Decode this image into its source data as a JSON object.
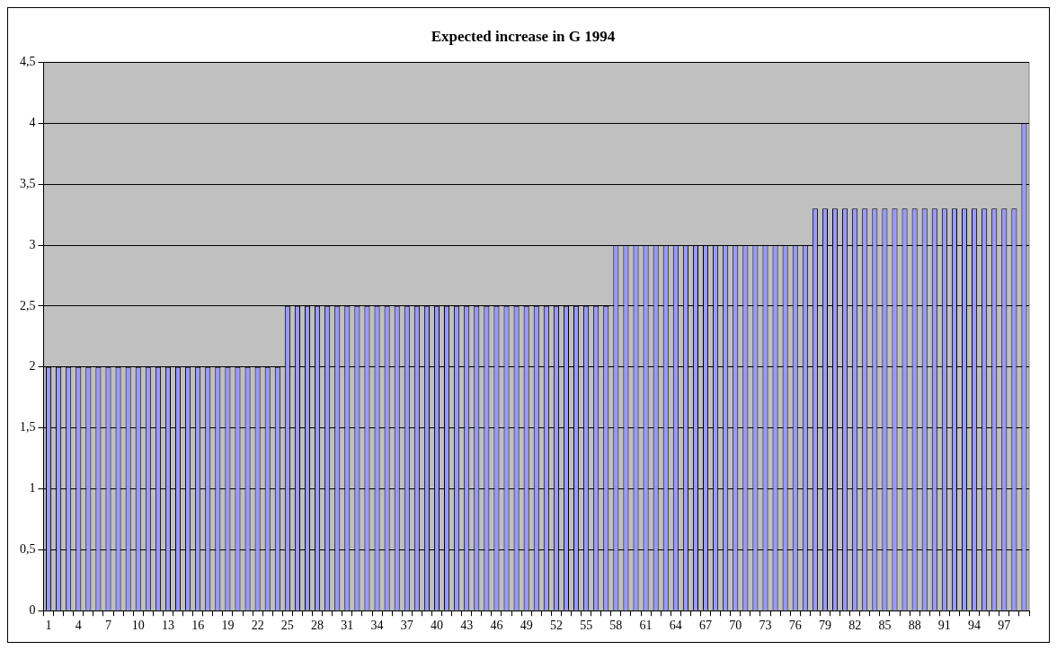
{
  "chart_data": {
    "type": "bar",
    "title": "Expected increase in G 1994",
    "categories": [
      "1",
      null,
      null,
      "4",
      null,
      null,
      "7",
      null,
      null,
      "10",
      null,
      null,
      "13",
      null,
      null,
      "16",
      null,
      null,
      "19",
      null,
      null,
      "22",
      null,
      null,
      "25",
      null,
      null,
      "28",
      null,
      null,
      "31",
      null,
      null,
      "34",
      null,
      null,
      "37",
      null,
      null,
      "40",
      null,
      null,
      "43",
      null,
      null,
      "46",
      null,
      null,
      "49",
      null,
      null,
      "52",
      null,
      null,
      "55",
      null,
      null,
      "58",
      null,
      null,
      "61",
      null,
      null,
      "64",
      null,
      null,
      "67",
      null,
      null,
      "70",
      null,
      null,
      "73",
      null,
      null,
      "76",
      null,
      null,
      "79",
      null,
      null,
      "82",
      null,
      null,
      "85",
      null,
      null,
      "88",
      null,
      null,
      "91",
      null,
      null,
      "94",
      null,
      null,
      "97",
      null,
      null
    ],
    "values": [
      2,
      2,
      2,
      2,
      2,
      2,
      2,
      2,
      2,
      2,
      2,
      2,
      2,
      2,
      2,
      2,
      2,
      2,
      2,
      2,
      2,
      2,
      2,
      2,
      2.5,
      2.5,
      2.5,
      2.5,
      2.5,
      2.5,
      2.5,
      2.5,
      2.5,
      2.5,
      2.5,
      2.5,
      2.5,
      2.5,
      2.5,
      2.5,
      2.5,
      2.5,
      2.5,
      2.5,
      2.5,
      2.5,
      2.5,
      2.5,
      2.5,
      2.5,
      2.5,
      2.5,
      2.5,
      2.5,
      2.5,
      2.5,
      2.5,
      3,
      3,
      3,
      3,
      3,
      3,
      3,
      3,
      3,
      3,
      3,
      3,
      3,
      3,
      3,
      3,
      3,
      3,
      3,
      3,
      3.3,
      3.3,
      3.3,
      3.3,
      3.3,
      3.3,
      3.3,
      3.3,
      3.3,
      3.3,
      3.3,
      3.3,
      3.3,
      3.3,
      3.3,
      3.3,
      3.3,
      3.3,
      3.3,
      3.3,
      3.3,
      4
    ],
    "color": "#9999ff",
    "ylim": [
      0,
      4.5
    ],
    "yticks": [
      {
        "value": 0,
        "label": "0"
      },
      {
        "value": 0.5,
        "label": "0,5"
      },
      {
        "value": 1,
        "label": "1"
      },
      {
        "value": 1.5,
        "label": "1,5"
      },
      {
        "value": 2,
        "label": "2"
      },
      {
        "value": 2.5,
        "label": "2,5"
      },
      {
        "value": 3,
        "label": "3"
      },
      {
        "value": 3.5,
        "label": "3,5"
      },
      {
        "value": 4,
        "label": "4"
      },
      {
        "value": 4.5,
        "label": "4,5"
      }
    ],
    "grid": "y",
    "legend": false
  }
}
